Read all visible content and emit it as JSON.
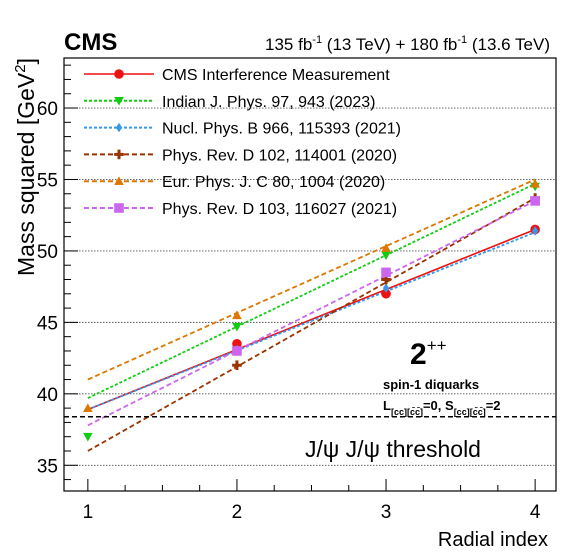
{
  "chart_data": {
    "type": "line",
    "experiment": "CMS",
    "lumi_text": {
      "part1": "135 fb",
      "exp1": "-1",
      "part2": " (13 TeV) + 180 fb",
      "exp2": "-1",
      "part3": " (13.6 TeV)"
    },
    "xlabel": "Radial index",
    "ylabel": {
      "main": "Mass squared [GeV",
      "sup": "2",
      "end": "]"
    },
    "xlim": [
      0.84,
      4.14
    ],
    "ylim": [
      33.2,
      63.5
    ],
    "xticks": [
      1,
      2,
      3,
      4
    ],
    "yticks": [
      35,
      40,
      45,
      50,
      55,
      60
    ],
    "grid": {
      "y": "dotted",
      "x": "none"
    },
    "legend_position": "top-left",
    "series": [
      {
        "name": "CMS Interference Measurement",
        "color": "#ee1111",
        "marker": "circle",
        "dash": "solid",
        "points": [
          [
            2,
            43.5
          ],
          [
            3,
            47.0
          ],
          [
            4,
            51.5
          ]
        ],
        "fit": [
          [
            1,
            38.9
          ],
          [
            4,
            51.5
          ]
        ]
      },
      {
        "name": "Indian J. Phys. 97, 943 (2023)",
        "color": "#11cc11",
        "marker": "triangle-down",
        "dash": "dotted",
        "points": [
          [
            1,
            37.0
          ],
          [
            2,
            44.7
          ],
          [
            3,
            49.7
          ],
          [
            4,
            54.5
          ]
        ],
        "fit": [
          [
            1,
            39.7
          ],
          [
            4,
            54.7
          ]
        ]
      },
      {
        "name": "Nucl. Phys. B 966, 115393 (2021)",
        "color": "#3399ee",
        "marker": "diamond",
        "dash": "dotted",
        "points": [
          [
            2,
            43.1
          ],
          [
            3,
            47.4
          ],
          [
            4,
            51.4
          ]
        ],
        "fit": [
          [
            1,
            38.9
          ],
          [
            4,
            51.3
          ]
        ]
      },
      {
        "name": "Phys. Rev. D 102, 114001 (2020)",
        "color": "#993300",
        "marker": "cross",
        "dash": "dashed",
        "points": [
          [
            2,
            42.0
          ],
          [
            3,
            48.0
          ],
          [
            4,
            53.7
          ]
        ],
        "fit": [
          [
            1,
            36.0
          ],
          [
            4,
            53.7
          ]
        ]
      },
      {
        "name": "Eur. Phys. J. C 80, 1004 (2020)",
        "color": "#dd7700",
        "marker": "triangle-up",
        "dash": "dashed",
        "points": [
          [
            1,
            39.0
          ],
          [
            2,
            45.5
          ],
          [
            3,
            50.2
          ],
          [
            4,
            54.7
          ]
        ],
        "fit": [
          [
            1,
            41.0
          ],
          [
            4,
            55.0
          ]
        ]
      },
      {
        "name": "Phys. Rev. D 103, 116027 (2021)",
        "color": "#cc66ee",
        "marker": "square",
        "dash": "dashed",
        "points": [
          [
            2,
            43.0
          ],
          [
            3,
            48.5
          ],
          [
            4,
            53.5
          ]
        ],
        "fit": [
          [
            1,
            37.8
          ],
          [
            4,
            53.5
          ]
        ]
      }
    ],
    "threshold": {
      "y": 38.4,
      "label": "J/ψ J/ψ threshold"
    },
    "annotations": {
      "state": "2",
      "state_sup": "++",
      "line1": "spin-1 diquarks",
      "line2a": "L",
      "line2a_sub": "[cc][c̄c̄]",
      "line2b": "=0, S",
      "line2b_sub": "[cc][c̄c̄]",
      "line2c": "=2"
    }
  }
}
